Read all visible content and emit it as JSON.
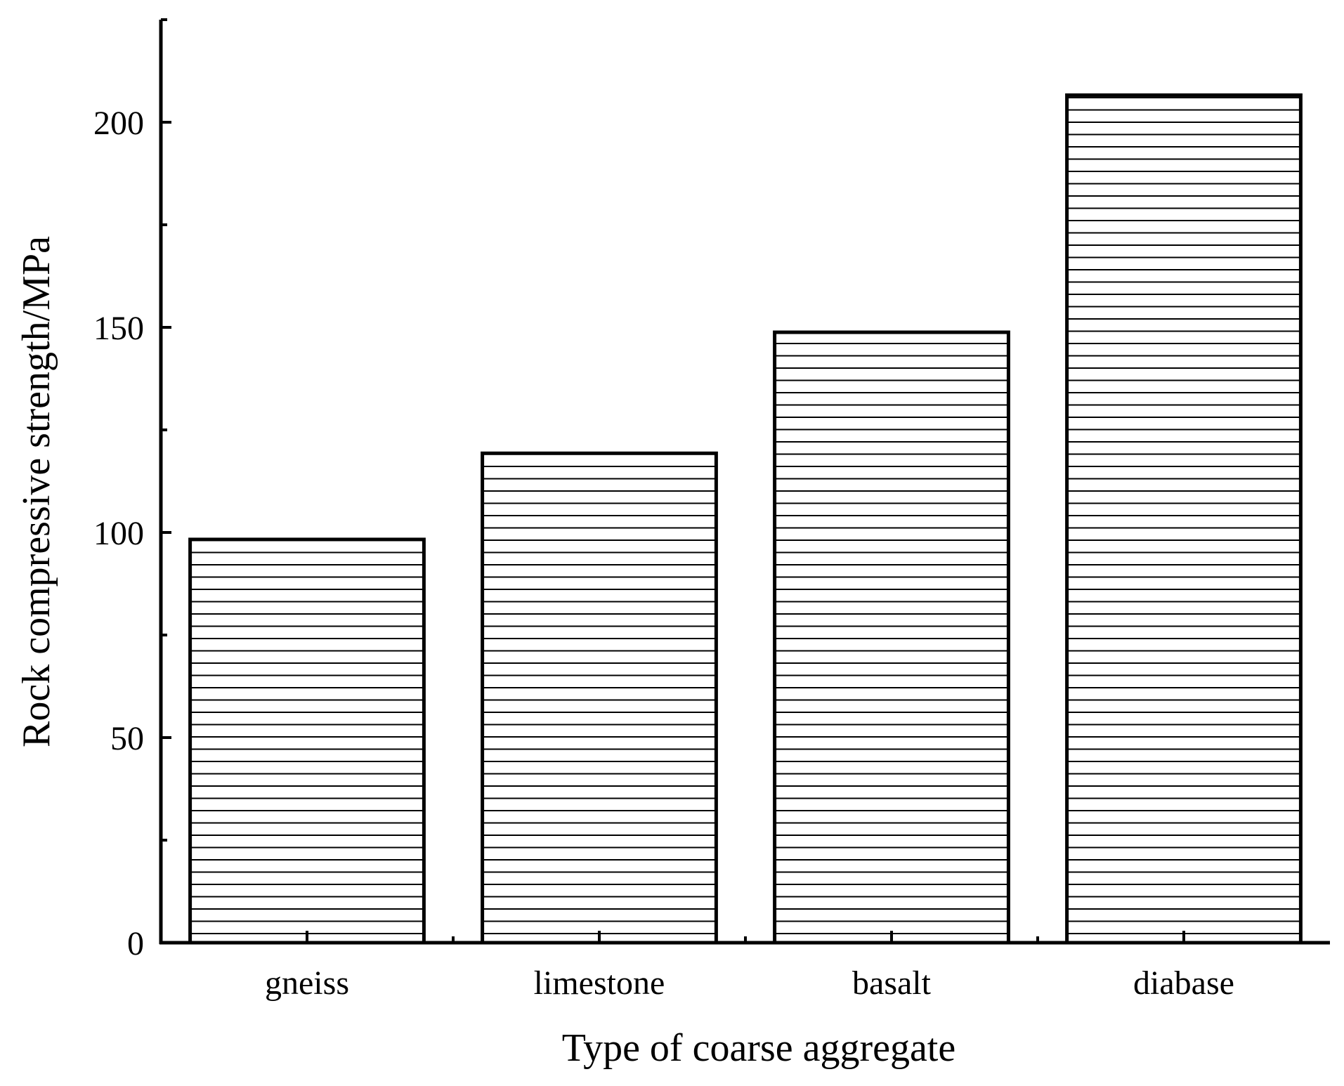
{
  "chart_data": {
    "type": "bar",
    "categories": [
      "gneiss",
      "limestone",
      "basalt",
      "diabase"
    ],
    "values": [
      98.3,
      119.3,
      148.8,
      206.6
    ],
    "xlabel": "Type of coarse aggregate",
    "ylabel": "Rock compressive strength/MPa",
    "ylim": [
      0,
      225
    ],
    "yticks": [
      0,
      50,
      100,
      150,
      200
    ],
    "y_minor_step": 25,
    "grid": false,
    "legend": "none",
    "bar_fill": "horizontal-hatch",
    "colors": {
      "bar_fill": "#ffffff",
      "bar_edge": "#000000",
      "hatch": "#000000",
      "axis": "#000000",
      "background": "#ffffff"
    }
  }
}
